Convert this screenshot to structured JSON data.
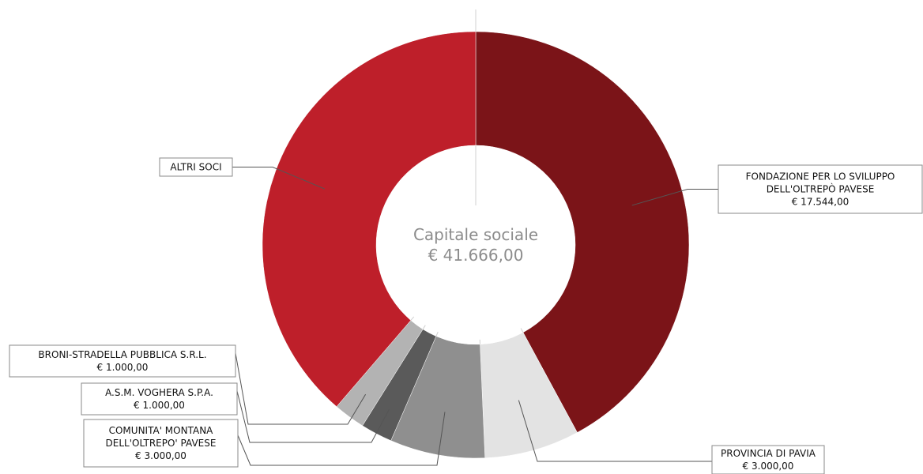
{
  "chart_data": {
    "type": "pie",
    "donut": true,
    "center_label": {
      "line1": "Capitale sociale",
      "line2": "€ 41.666,00"
    },
    "total": 41666,
    "slices": [
      {
        "id": "fondazione",
        "label_lines": [
          "FONDAZIONE PER LO SVILUPPO",
          "DELL'OLTREPÒ PAVESE",
          "€ 17.544,00"
        ],
        "value": 17544,
        "color": "#7b1418"
      },
      {
        "id": "provincia",
        "label_lines": [
          "PROVINCIA DI PAVIA",
          "€ 3.000,00"
        ],
        "value": 3000,
        "color": "#e3e3e3"
      },
      {
        "id": "comunita",
        "label_lines": [
          "COMUNITA' MONTANA",
          "DELL'OLTREPO' PAVESE",
          "€ 3.000,00"
        ],
        "value": 3000,
        "color": "#8f8f8f"
      },
      {
        "id": "asm",
        "label_lines": [
          "A.S.M. VOGHERA S.P.A.",
          "€ 1.000,00"
        ],
        "value": 1000,
        "color": "#5a5a5a"
      },
      {
        "id": "broni",
        "label_lines": [
          "BRONI-STRADELLA PUBBLICA S.R.L.",
          "€ 1.000,00"
        ],
        "value": 1000,
        "color": "#b3b3b3"
      },
      {
        "id": "altri",
        "label_lines": [
          "ALTRI SOCI"
        ],
        "value": 16122,
        "color": "#be1f2a"
      }
    ]
  }
}
